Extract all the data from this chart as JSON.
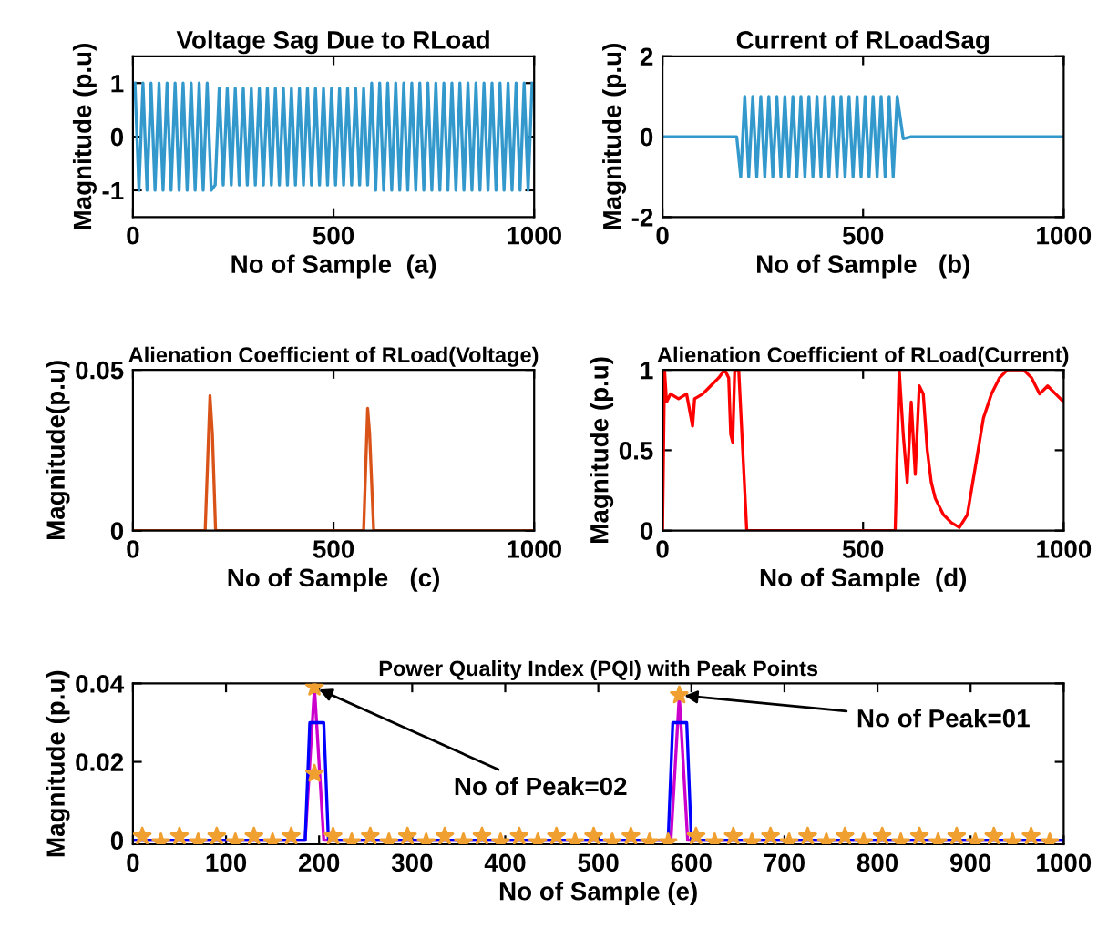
{
  "chart_data": [
    {
      "type": "line",
      "title": "Voltage Sag Due to RLoad",
      "xlabel": "No of Sample  (a)",
      "ylabel": "Magnitude (p.u)",
      "xlim": [
        0,
        1000
      ],
      "xticks": [
        0,
        500,
        1000
      ],
      "ylim": [
        -1.5,
        1.5
      ],
      "yticks": [
        -1,
        0,
        1
      ],
      "series": [
        {
          "color": "#3399cc",
          "x": [
            5,
            15,
            25,
            35,
            45,
            55,
            65,
            75,
            85,
            95,
            105,
            115,
            125,
            135,
            145,
            155,
            165,
            175,
            185,
            195,
            205,
            215,
            225,
            235,
            245,
            255,
            265,
            275,
            285,
            295,
            305,
            315,
            325,
            335,
            345,
            355,
            365,
            375,
            385,
            395,
            405,
            415,
            425,
            435,
            445,
            455,
            465,
            475,
            485,
            495,
            505,
            515,
            525,
            535,
            545,
            555,
            565,
            575,
            585,
            595,
            605,
            615,
            625,
            635,
            645,
            655,
            665,
            675,
            685,
            695,
            705,
            715,
            725,
            735,
            745,
            755,
            765,
            775,
            785,
            795,
            805,
            815,
            825,
            835,
            845,
            855,
            865,
            875,
            885,
            895,
            905,
            915,
            925,
            935,
            945,
            955,
            965,
            975,
            985,
            995
          ],
          "values": [
            1,
            -1,
            1,
            -1,
            1,
            -1,
            1,
            -1,
            1,
            -1,
            1,
            -1,
            1,
            -1,
            1,
            -1,
            1,
            -1,
            1,
            -1,
            -0.9,
            0.9,
            -0.9,
            0.9,
            -0.9,
            0.9,
            -0.9,
            0.9,
            -0.9,
            0.9,
            -0.9,
            0.9,
            -0.9,
            0.9,
            -0.9,
            0.9,
            -0.9,
            0.9,
            -0.9,
            0.9,
            -0.9,
            0.9,
            -0.9,
            0.9,
            -0.9,
            0.9,
            -0.9,
            0.9,
            -0.9,
            0.9,
            -0.9,
            0.9,
            -0.9,
            0.9,
            -0.9,
            0.9,
            -0.9,
            0.9,
            -0.9,
            1,
            -1,
            1,
            -1,
            1,
            -1,
            1,
            -1,
            1,
            -1,
            1,
            -1,
            1,
            -1,
            1,
            -1,
            1,
            -1,
            1,
            -1,
            1,
            -1,
            1,
            -1,
            1,
            -1,
            1,
            -1,
            1,
            -1,
            1,
            -1,
            1,
            -1,
            1,
            -1,
            1,
            -1,
            1,
            -1,
            1
          ]
        }
      ]
    },
    {
      "type": "line",
      "title": "Current of RLoadSag",
      "xlabel": "No of Sample   (b)",
      "ylabel": "Magnitude (p.u)",
      "xlim": [
        0,
        1000
      ],
      "xticks": [
        0,
        500,
        1000
      ],
      "ylim": [
        -2,
        2
      ],
      "yticks": [
        -2,
        0,
        2
      ],
      "series": [
        {
          "color": "#3399cc",
          "x": [
            0,
            185,
            195,
            205,
            215,
            225,
            235,
            245,
            255,
            265,
            275,
            285,
            295,
            305,
            315,
            325,
            335,
            345,
            355,
            365,
            375,
            385,
            395,
            405,
            415,
            425,
            435,
            445,
            455,
            465,
            475,
            485,
            495,
            505,
            515,
            525,
            535,
            545,
            555,
            565,
            575,
            585,
            600,
            620,
            1000
          ],
          "values": [
            0,
            0,
            -1,
            1,
            -1,
            1,
            -1,
            1,
            -1,
            1,
            -1,
            1,
            -1,
            1,
            -1,
            1,
            -1,
            1,
            -1,
            1,
            -1,
            1,
            -1,
            1,
            -1,
            1,
            -1,
            1,
            -1,
            1,
            -1,
            1,
            -1,
            1,
            -1,
            1,
            -1,
            1,
            -1,
            1,
            -1,
            1,
            -0.05,
            0,
            0
          ]
        }
      ]
    },
    {
      "type": "line",
      "title": "Alienation Coefficient of RLoad(Voltage)",
      "xlabel": "No of Sample   (c)",
      "ylabel": "Magnitude(p.u)",
      "xlim": [
        0,
        1000
      ],
      "xticks": [
        0,
        500,
        1000
      ],
      "ylim": [
        0,
        0.05
      ],
      "yticks": [
        0,
        0.05
      ],
      "series": [
        {
          "color": "#d95319",
          "x": [
            0,
            180,
            192,
            198,
            206,
            575,
            585,
            590,
            600,
            1000
          ],
          "values": [
            0,
            0,
            0.042,
            0.03,
            0,
            0,
            0.038,
            0.03,
            0,
            0
          ]
        }
      ]
    },
    {
      "type": "line",
      "title": "Alienation Coefficient of RLoad(Current)",
      "xlabel": "No of Sample  (d)",
      "ylabel": "Magnitude (p.u)",
      "xlim": [
        0,
        1000
      ],
      "xticks": [
        0,
        500,
        1000
      ],
      "ylim": [
        0,
        1
      ],
      "yticks": [
        0,
        0.5,
        1
      ],
      "series": [
        {
          "color": "#ff0000",
          "x": [
            0,
            5,
            10,
            20,
            40,
            60,
            75,
            80,
            100,
            120,
            140,
            155,
            165,
            170,
            175,
            180,
            190,
            200,
            210,
            580,
            590,
            600,
            610,
            620,
            630,
            640,
            650,
            660,
            670,
            680,
            700,
            720,
            740,
            760,
            780,
            800,
            820,
            840,
            860,
            880,
            900,
            920,
            940,
            960,
            980,
            1000
          ],
          "values": [
            0,
            1,
            0.8,
            0.85,
            0.82,
            0.85,
            0.65,
            0.82,
            0.85,
            0.9,
            0.95,
            1,
            0.95,
            0.6,
            0.55,
            1,
            1,
            0.5,
            0,
            0,
            1,
            0.6,
            0.3,
            0.8,
            0.35,
            0.9,
            0.85,
            0.5,
            0.3,
            0.2,
            0.1,
            0.05,
            0.02,
            0.1,
            0.4,
            0.7,
            0.85,
            0.95,
            1,
            1,
            1,
            0.95,
            0.85,
            0.9,
            0.85,
            0.8
          ]
        }
      ]
    },
    {
      "type": "line",
      "title": "Power Quality Index (PQI) with Peak Points",
      "xlabel": "No of Sample (e)",
      "ylabel": "Magnitude (p.u)",
      "xlim": [
        0,
        1000
      ],
      "xticks": [
        0,
        100,
        200,
        300,
        400,
        500,
        600,
        700,
        800,
        900,
        1000
      ],
      "ylim": [
        -0.001,
        0.04
      ],
      "yticks": [
        0,
        0.02,
        0.04
      ],
      "annotations": [
        {
          "text": "No of Peak=02",
          "x": 195,
          "y": 0.039
        },
        {
          "text": "No of Peak=01",
          "x": 587,
          "y": 0.037
        }
      ],
      "series": [
        {
          "type": "line",
          "color": "#cc00cc",
          "x": [
            0,
            185,
            195,
            205,
            578,
            587,
            596,
            1000
          ],
          "values": [
            0,
            0,
            0.039,
            0,
            0,
            0.037,
            0,
            0
          ]
        },
        {
          "type": "line",
          "color": "#0000ff",
          "x": [
            0,
            185,
            190,
            205,
            210,
            575,
            580,
            595,
            600,
            1000
          ],
          "values": [
            0,
            0,
            0.03,
            0.03,
            0,
            0,
            0.03,
            0.03,
            0,
            0
          ]
        },
        {
          "type": "scatter",
          "marker": "star",
          "color": "#f0a030",
          "x": [
            10,
            30,
            50,
            70,
            90,
            110,
            130,
            150,
            170,
            195,
            195,
            215,
            235,
            255,
            275,
            295,
            315,
            335,
            355,
            375,
            395,
            415,
            435,
            455,
            475,
            495,
            515,
            535,
            555,
            575,
            587,
            605,
            625,
            645,
            665,
            685,
            705,
            725,
            745,
            765,
            785,
            805,
            825,
            845,
            865,
            885,
            905,
            925,
            945,
            965,
            985
          ],
          "values": [
            0.001,
            -0.0005,
            0.001,
            -0.0005,
            0.001,
            -0.0005,
            0.001,
            -0.0005,
            0.001,
            0.039,
            0.017,
            0.001,
            -0.0005,
            0.001,
            -0.0005,
            0.001,
            -0.0005,
            0.001,
            -0.0005,
            0.001,
            -0.0005,
            0.001,
            -0.0005,
            0.001,
            -0.0005,
            0.001,
            -0.0005,
            0.001,
            -0.0005,
            -0.0005,
            0.037,
            0.001,
            -0.0005,
            0.001,
            -0.0005,
            0.001,
            -0.0005,
            0.001,
            -0.0005,
            0.001,
            -0.0005,
            0.001,
            -0.0005,
            0.001,
            -0.0005,
            0.001,
            -0.0005,
            0.001,
            -0.0005,
            0.001,
            -0.0005
          ]
        }
      ]
    }
  ]
}
